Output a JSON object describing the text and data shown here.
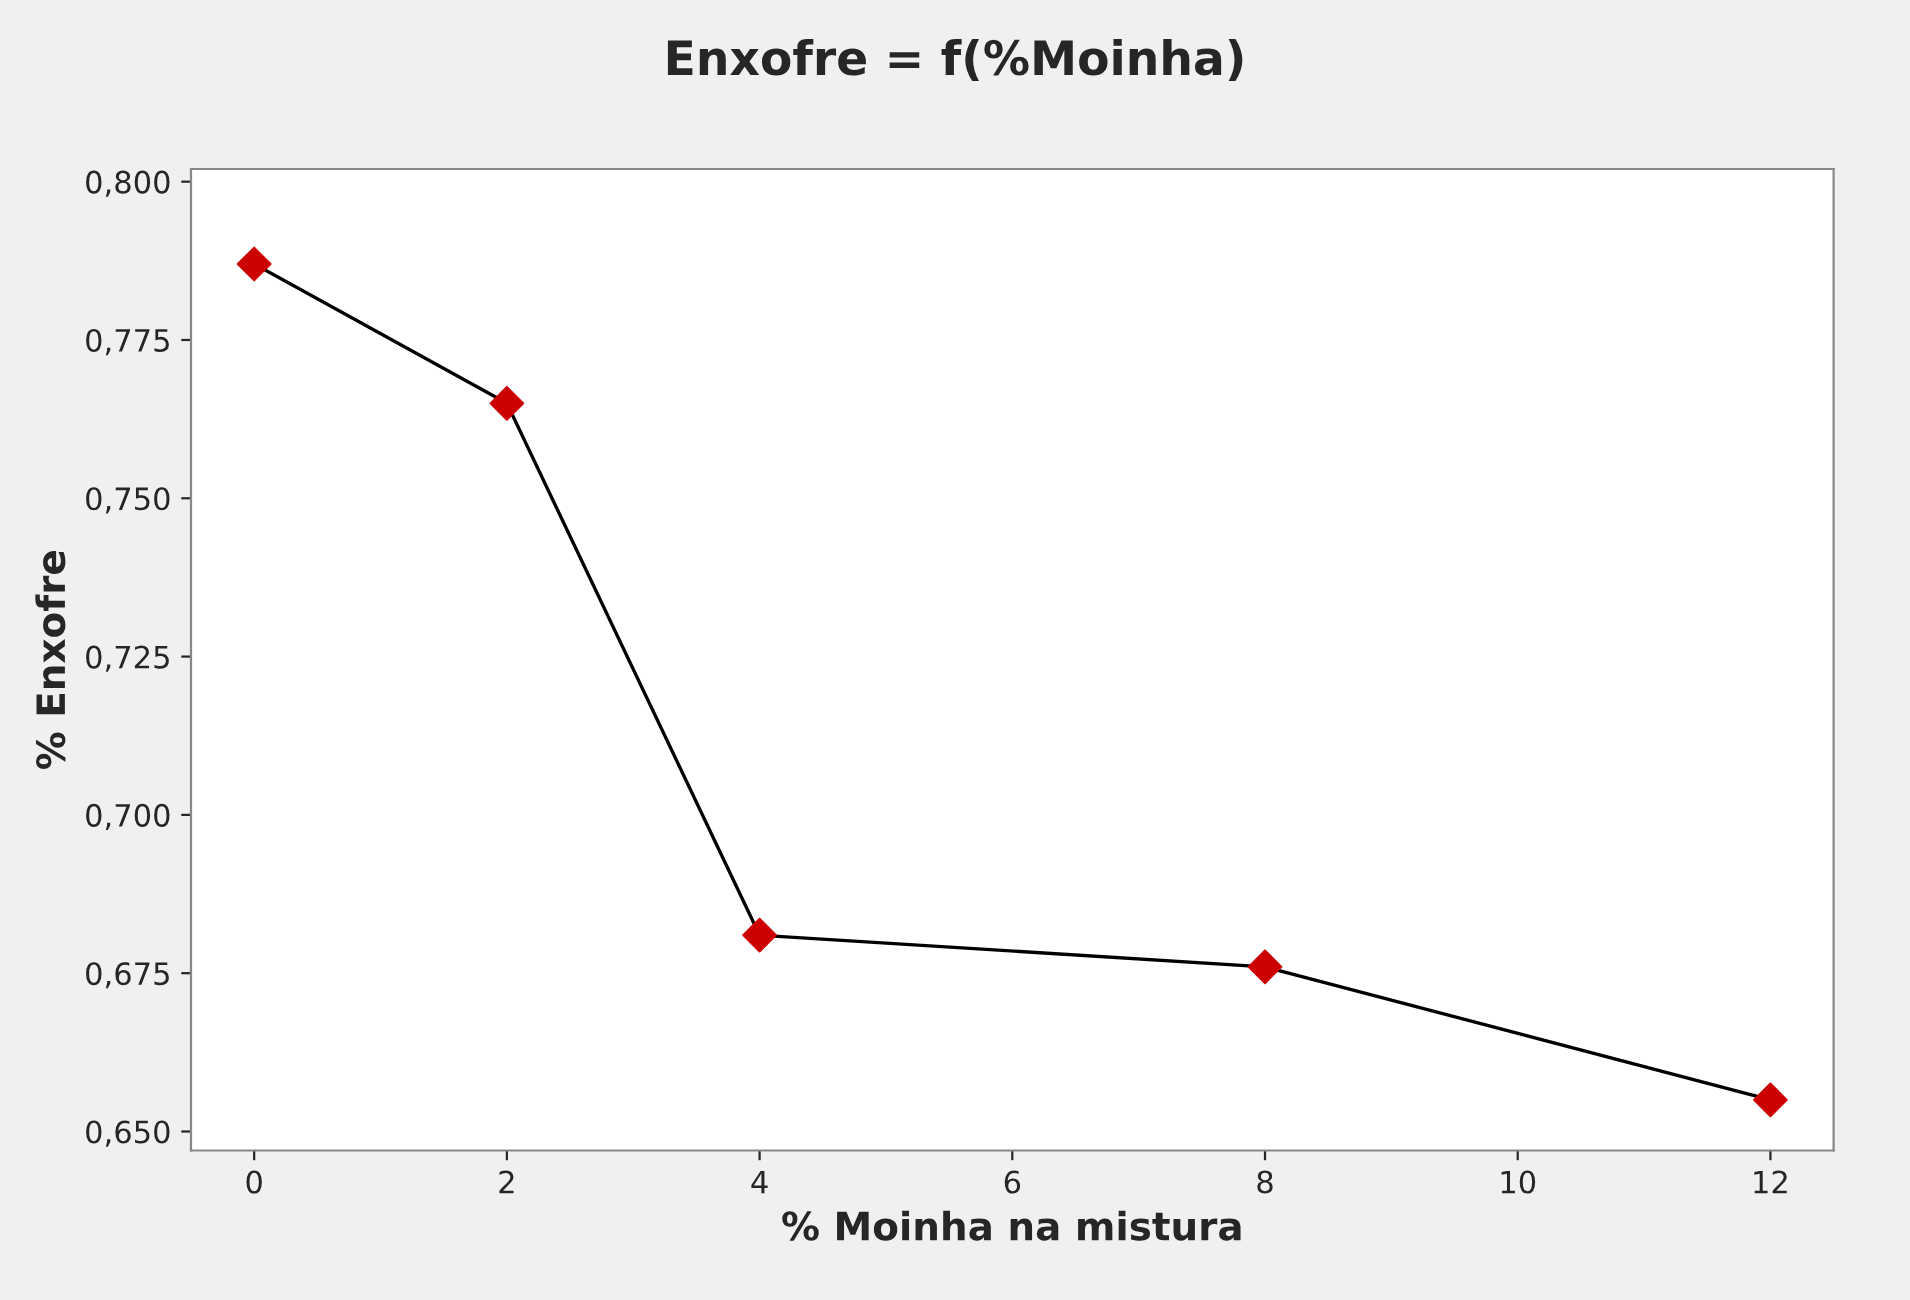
{
  "chart_data": {
    "type": "line",
    "title": "Enxofre = f(%Moinha)",
    "xlabel": "% Moinha na mistura",
    "ylabel": "% Enxofre",
    "x": [
      0,
      2,
      4,
      8,
      12
    ],
    "series": [
      {
        "color": "#cc0000",
        "values": [
          0.787,
          0.765,
          0.681,
          0.676,
          0.655
        ]
      }
    ],
    "xlim": [
      -0.5,
      12.5
    ],
    "xticks": [
      0,
      2,
      4,
      6,
      8,
      10,
      12
    ],
    "ylim": [
      0.647,
      0.802
    ],
    "yticks": [
      {
        "value": 0.65,
        "label": "0,650"
      },
      {
        "value": 0.675,
        "label": "0,675"
      },
      {
        "value": 0.7,
        "label": "0,700"
      },
      {
        "value": 0.725,
        "label": "0,725"
      },
      {
        "value": 0.75,
        "label": "0,750"
      },
      {
        "value": 0.775,
        "label": "0,775"
      },
      {
        "value": 0.8,
        "label": "0,800"
      }
    ],
    "marker": "diamond",
    "line_style": "solid",
    "grid": false,
    "legend": false
  }
}
